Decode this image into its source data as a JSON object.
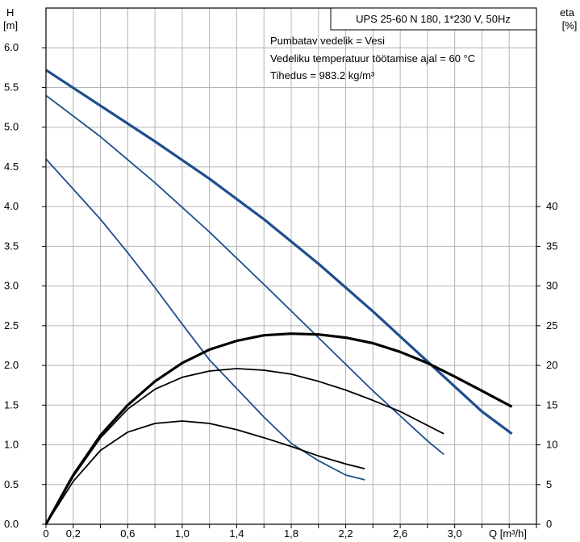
{
  "chart_data": {
    "type": "line",
    "title": "UPS 25-60 N 180, 1*230 V, 50Hz",
    "annotations": [
      "Pumbatav vedelik = Vesi",
      "Vedeliku temperatuur töötamise ajal = 60 °C",
      "Tihedus = 983.2 kg/m³"
    ],
    "ylabel_left": [
      "H",
      "[m]"
    ],
    "ylabel_right": [
      "eta",
      "[%]"
    ],
    "xlabel": "Q [m³/h]",
    "xlim": [
      0,
      3.6
    ],
    "ylim_left": [
      0,
      6.5
    ],
    "ylim_right": [
      0,
      65
    ],
    "x_ticks": [
      {
        "v": 0,
        "l": "0"
      },
      {
        "v": 0.2,
        "l": "0,2"
      },
      {
        "v": 0.6,
        "l": "0,6"
      },
      {
        "v": 1.0,
        "l": "1,0"
      },
      {
        "v": 1.4,
        "l": "1,4"
      },
      {
        "v": 1.8,
        "l": "1,8"
      },
      {
        "v": 2.2,
        "l": "2,2"
      },
      {
        "v": 2.6,
        "l": "2,6"
      },
      {
        "v": 3.0,
        "l": "3,0"
      }
    ],
    "y_ticks_left": [
      {
        "v": 0.0,
        "l": "0.0"
      },
      {
        "v": 0.5,
        "l": "0.5"
      },
      {
        "v": 1.0,
        "l": "1.0"
      },
      {
        "v": 1.5,
        "l": "1.5"
      },
      {
        "v": 2.0,
        "l": "2.0"
      },
      {
        "v": 2.5,
        "l": "2.5"
      },
      {
        "v": 3.0,
        "l": "3.0"
      },
      {
        "v": 3.5,
        "l": "3.5"
      },
      {
        "v": 4.0,
        "l": "4.0"
      },
      {
        "v": 4.5,
        "l": "4.5"
      },
      {
        "v": 5.0,
        "l": "5.0"
      },
      {
        "v": 5.5,
        "l": "5.5"
      },
      {
        "v": 6.0,
        "l": "6.0"
      }
    ],
    "y_ticks_right": [
      {
        "v": 0,
        "l": "0"
      },
      {
        "v": 5,
        "l": "5"
      },
      {
        "v": 10,
        "l": "10"
      },
      {
        "v": 15,
        "l": "15"
      },
      {
        "v": 20,
        "l": "20"
      },
      {
        "v": 25,
        "l": "25"
      },
      {
        "v": 30,
        "l": "30"
      },
      {
        "v": 35,
        "l": "35"
      },
      {
        "v": 40,
        "l": "40"
      }
    ],
    "grid": true,
    "colors": {
      "head": "#1f4e8c",
      "efficiency": "#000000",
      "grid": "#b4b4b4"
    },
    "head_series": [
      {
        "x": [
          0,
          0.4,
          0.8,
          1.2,
          1.6,
          2.0,
          2.4,
          2.8,
          3.2,
          3.42
        ],
        "y": [
          5.72,
          5.27,
          4.82,
          4.35,
          3.84,
          3.28,
          2.68,
          2.05,
          1.42,
          1.14
        ]
      },
      {
        "x": [
          0,
          0.4,
          0.8,
          1.2,
          1.6,
          2.0,
          2.4,
          2.8,
          2.92
        ],
        "y": [
          5.4,
          4.88,
          4.3,
          3.68,
          3.02,
          2.35,
          1.68,
          1.05,
          0.88
        ]
      },
      {
        "x": [
          0,
          0.2,
          0.4,
          0.6,
          0.8,
          1.0,
          1.2,
          1.4,
          1.6,
          1.8,
          2.0,
          2.2,
          2.34
        ],
        "y": [
          4.6,
          4.22,
          3.84,
          3.42,
          2.98,
          2.52,
          2.07,
          1.71,
          1.35,
          1.02,
          0.8,
          0.62,
          0.56
        ]
      }
    ],
    "efficiency_series": [
      {
        "x": [
          0,
          0.2,
          0.4,
          0.6,
          0.8,
          1.0,
          1.2,
          1.4,
          1.6,
          1.8,
          2.0,
          2.2,
          2.4,
          2.6,
          2.8,
          3.0,
          3.2,
          3.42
        ],
        "y": [
          0,
          6.2,
          11.2,
          15.0,
          18.0,
          20.3,
          22.0,
          23.1,
          23.8,
          24.0,
          23.9,
          23.5,
          22.8,
          21.7,
          20.3,
          18.6,
          16.8,
          14.8
        ]
      },
      {
        "x": [
          0,
          0.2,
          0.4,
          0.6,
          0.8,
          1.0,
          1.2,
          1.4,
          1.6,
          1.8,
          2.0,
          2.2,
          2.4,
          2.6,
          2.92
        ],
        "y": [
          0,
          6.0,
          10.9,
          14.5,
          17.0,
          18.5,
          19.3,
          19.6,
          19.4,
          18.9,
          18.0,
          16.9,
          15.6,
          14.2,
          11.4
        ]
      },
      {
        "x": [
          0,
          0.2,
          0.4,
          0.6,
          0.8,
          1.0,
          1.2,
          1.4,
          1.6,
          1.8,
          2.0,
          2.2,
          2.34
        ],
        "y": [
          0,
          5.4,
          9.3,
          11.6,
          12.7,
          13.0,
          12.7,
          11.9,
          10.9,
          9.8,
          8.6,
          7.6,
          7.0
        ]
      }
    ]
  }
}
